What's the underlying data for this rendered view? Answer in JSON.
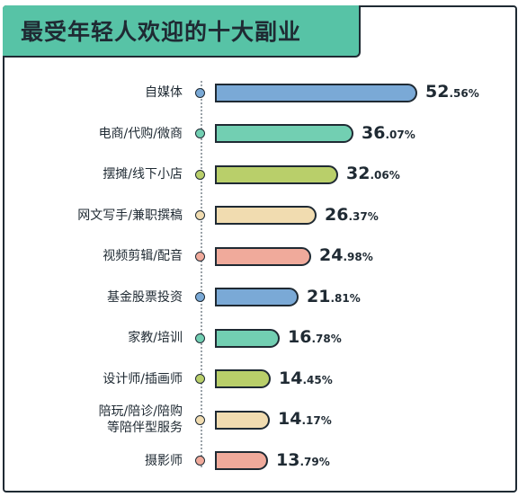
{
  "chart_data": {
    "type": "bar",
    "title": "最受年轻人欢迎的十大副业",
    "categories": [
      [
        "自媒体"
      ],
      [
        "电商/代购/微商"
      ],
      [
        "摆摊/线下小店"
      ],
      [
        "网文写手/兼职撰稿"
      ],
      [
        "视频剪辑/配音"
      ],
      [
        "基金股票投资"
      ],
      [
        "家教/培训"
      ],
      [
        "设计师/插画师"
      ],
      [
        "陪玩/陪诊/陪购",
        "等陪伴型服务"
      ],
      [
        "摄影师"
      ]
    ],
    "values": [
      52.56,
      36.07,
      32.06,
      26.37,
      24.98,
      21.81,
      16.78,
      14.45,
      14.17,
      13.79
    ],
    "value_labels": [
      [
        "52",
        ".56%"
      ],
      [
        "36",
        ".07%"
      ],
      [
        "32",
        ".06%"
      ],
      [
        "26",
        ".37%"
      ],
      [
        "24",
        ".98%"
      ],
      [
        "21",
        ".81%"
      ],
      [
        "16",
        ".78%"
      ],
      [
        "14",
        ".45%"
      ],
      [
        "14",
        ".17%"
      ],
      [
        "13",
        ".79%"
      ]
    ],
    "colors": [
      "#7aa9d6",
      "#72cfb2",
      "#b9cf6a",
      "#f1dcb0",
      "#f0aa9b",
      "#7aa9d6",
      "#72cfb2",
      "#b9cf6a",
      "#f1dcb0",
      "#f0aa9b"
    ],
    "xlim": [
      0,
      55
    ],
    "grid": false,
    "legend": "none"
  }
}
